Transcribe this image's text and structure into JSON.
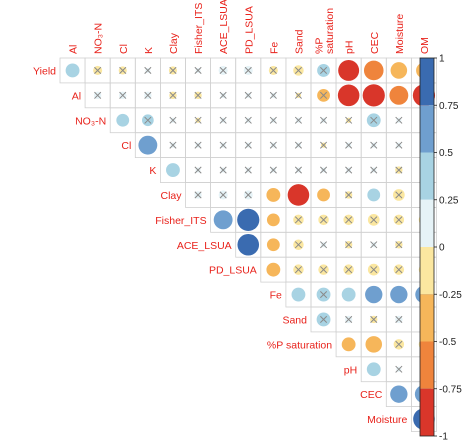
{
  "chart_data": {
    "type": "heatmap",
    "subtype": "correlogram-upper-triangle",
    "variables": [
      "Yield",
      "Al",
      "NO₃-N",
      "Cl",
      "K",
      "Clay",
      "Fisher_ITS",
      "ACE_LSUA",
      "PD_LSUA",
      "Fe",
      "Sand",
      "%P saturation",
      "pH",
      "CEC",
      "Moisture",
      "OM"
    ],
    "row_labels": [
      "Yield",
      "Al",
      "NO₃-N",
      "Cl",
      "K",
      "Clay",
      "Fisher_ITS",
      "ACE_LSUA",
      "PD_LSUA",
      "Fe",
      "Sand",
      "%P saturation",
      "pH",
      "CEC",
      "Moisture"
    ],
    "column_labels": [
      "Al",
      "NO₃-N",
      "Cl",
      "K",
      "Clay",
      "Fisher_ITS",
      "ACE_LSUA",
      "PD_LSUA",
      "Fe",
      "Sand",
      "%P\nsaturation",
      "pH",
      "CEC",
      "Moisture",
      "OM"
    ],
    "cells": [
      {
        "row": "Yield",
        "col": "Al",
        "r": 0.35,
        "sig": true
      },
      {
        "row": "Yield",
        "col": "NO₃-N",
        "r": -0.15,
        "sig": false
      },
      {
        "row": "Yield",
        "col": "Cl",
        "r": -0.12,
        "sig": false
      },
      {
        "row": "Yield",
        "col": "K",
        "r": 0.05,
        "sig": false
      },
      {
        "row": "Yield",
        "col": "Clay",
        "r": -0.12,
        "sig": false
      },
      {
        "row": "Yield",
        "col": "Fisher_ITS",
        "r": 0.05,
        "sig": false
      },
      {
        "row": "Yield",
        "col": "ACE_LSUA",
        "r": 0.15,
        "sig": false
      },
      {
        "row": "Yield",
        "col": "PD_LSUA",
        "r": 0.15,
        "sig": false
      },
      {
        "row": "Yield",
        "col": "Fe",
        "r": -0.15,
        "sig": false
      },
      {
        "row": "Yield",
        "col": "Sand",
        "r": -0.2,
        "sig": false
      },
      {
        "row": "Yield",
        "col": "%P saturation",
        "r": 0.3,
        "sig": false
      },
      {
        "row": "Yield",
        "col": "pH",
        "r": -0.8,
        "sig": true
      },
      {
        "row": "Yield",
        "col": "CEC",
        "r": -0.7,
        "sig": true
      },
      {
        "row": "Yield",
        "col": "Moisture",
        "r": -0.5,
        "sig": true
      },
      {
        "row": "Yield",
        "col": "OM",
        "r": -0.45,
        "sig": false
      },
      {
        "row": "Al",
        "col": "NO₃-N",
        "r": 0.1,
        "sig": false
      },
      {
        "row": "Al",
        "col": "Cl",
        "r": 0.1,
        "sig": false
      },
      {
        "row": "Al",
        "col": "K",
        "r": 0.1,
        "sig": false
      },
      {
        "row": "Al",
        "col": "Clay",
        "r": -0.1,
        "sig": false
      },
      {
        "row": "Al",
        "col": "Fisher_ITS",
        "r": -0.1,
        "sig": false
      },
      {
        "row": "Al",
        "col": "ACE_LSUA",
        "r": 0.05,
        "sig": false
      },
      {
        "row": "Al",
        "col": "PD_LSUA",
        "r": 0.05,
        "sig": false
      },
      {
        "row": "Al",
        "col": "Fe",
        "r": 0.05,
        "sig": false
      },
      {
        "row": "Al",
        "col": "Sand",
        "r": -0.05,
        "sig": false
      },
      {
        "row": "Al",
        "col": "%P saturation",
        "r": -0.3,
        "sig": false
      },
      {
        "row": "Al",
        "col": "pH",
        "r": -0.85,
        "sig": true
      },
      {
        "row": "Al",
        "col": "CEC",
        "r": -0.9,
        "sig": true
      },
      {
        "row": "Al",
        "col": "Moisture",
        "r": -0.65,
        "sig": true
      },
      {
        "row": "Al",
        "col": "OM",
        "r": -0.9,
        "sig": true
      },
      {
        "row": "NO₃-N",
        "col": "Cl",
        "r": 0.3,
        "sig": true
      },
      {
        "row": "NO₃-N",
        "col": "K",
        "r": 0.25,
        "sig": false
      },
      {
        "row": "NO₃-N",
        "col": "Clay",
        "r": 0.05,
        "sig": false
      },
      {
        "row": "NO₃-N",
        "col": "Fisher_ITS",
        "r": -0.05,
        "sig": false
      },
      {
        "row": "NO₃-N",
        "col": "ACE_LSUA",
        "r": 0.05,
        "sig": false
      },
      {
        "row": "NO₃-N",
        "col": "PD_LSUA",
        "r": 0.05,
        "sig": false
      },
      {
        "row": "NO₃-N",
        "col": "Fe",
        "r": 0.05,
        "sig": false
      },
      {
        "row": "NO₃-N",
        "col": "Sand",
        "r": 0.05,
        "sig": false
      },
      {
        "row": "NO₃-N",
        "col": "%P saturation",
        "r": 0.05,
        "sig": false
      },
      {
        "row": "NO₃-N",
        "col": "pH",
        "r": -0.05,
        "sig": false
      },
      {
        "row": "NO₃-N",
        "col": "CEC",
        "r": 0.35,
        "sig": false
      },
      {
        "row": "NO₃-N",
        "col": "Moisture",
        "r": 0.05,
        "sig": false
      },
      {
        "row": "NO₃-N",
        "col": "OM",
        "r": 0.05,
        "sig": false
      },
      {
        "row": "Cl",
        "col": "K",
        "r": 0.65,
        "sig": true
      },
      {
        "row": "Cl",
        "col": "Clay",
        "r": 0.05,
        "sig": false
      },
      {
        "row": "Cl",
        "col": "Fisher_ITS",
        "r": 0.05,
        "sig": false
      },
      {
        "row": "Cl",
        "col": "ACE_LSUA",
        "r": 0.05,
        "sig": false
      },
      {
        "row": "Cl",
        "col": "PD_LSUA",
        "r": 0.05,
        "sig": false
      },
      {
        "row": "Cl",
        "col": "Fe",
        "r": 0.05,
        "sig": false
      },
      {
        "row": "Cl",
        "col": "Sand",
        "r": 0.05,
        "sig": false
      },
      {
        "row": "Cl",
        "col": "%P saturation",
        "r": -0.05,
        "sig": false
      },
      {
        "row": "Cl",
        "col": "pH",
        "r": 0.05,
        "sig": false
      },
      {
        "row": "Cl",
        "col": "CEC",
        "r": 0.05,
        "sig": false
      },
      {
        "row": "Cl",
        "col": "Moisture",
        "r": 0.05,
        "sig": false
      },
      {
        "row": "Cl",
        "col": "OM",
        "r": 0.05,
        "sig": false
      },
      {
        "row": "K",
        "col": "Clay",
        "r": 0.35,
        "sig": true
      },
      {
        "row": "K",
        "col": "Fisher_ITS",
        "r": 0.05,
        "sig": false
      },
      {
        "row": "K",
        "col": "ACE_LSUA",
        "r": 0.05,
        "sig": false
      },
      {
        "row": "K",
        "col": "PD_LSUA",
        "r": 0.05,
        "sig": false
      },
      {
        "row": "K",
        "col": "Fe",
        "r": 0.05,
        "sig": false
      },
      {
        "row": "K",
        "col": "Sand",
        "r": 0.05,
        "sig": false
      },
      {
        "row": "K",
        "col": "%P saturation",
        "r": 0.05,
        "sig": false
      },
      {
        "row": "K",
        "col": "pH",
        "r": 0.05,
        "sig": false
      },
      {
        "row": "K",
        "col": "CEC",
        "r": 0.05,
        "sig": false
      },
      {
        "row": "K",
        "col": "Moisture",
        "r": -0.1,
        "sig": false
      },
      {
        "row": "K",
        "col": "OM",
        "r": 0.05,
        "sig": false
      },
      {
        "row": "Clay",
        "col": "Fisher_ITS",
        "r": 0.1,
        "sig": false
      },
      {
        "row": "Clay",
        "col": "ACE_LSUA",
        "r": 0.15,
        "sig": false
      },
      {
        "row": "Clay",
        "col": "PD_LSUA",
        "r": 0.15,
        "sig": false
      },
      {
        "row": "Clay",
        "col": "Fe",
        "r": -0.35,
        "sig": true
      },
      {
        "row": "Clay",
        "col": "Sand",
        "r": -0.85,
        "sig": true
      },
      {
        "row": "Clay",
        "col": "%P saturation",
        "r": -0.3,
        "sig": true
      },
      {
        "row": "Clay",
        "col": "pH",
        "r": -0.1,
        "sig": false
      },
      {
        "row": "Clay",
        "col": "CEC",
        "r": 0.3,
        "sig": true
      },
      {
        "row": "Clay",
        "col": "Moisture",
        "r": -0.25,
        "sig": false
      },
      {
        "row": "Clay",
        "col": "OM",
        "r": -0.05,
        "sig": false
      },
      {
        "row": "Fisher_ITS",
        "col": "ACE_LSUA",
        "r": 0.65,
        "sig": true
      },
      {
        "row": "Fisher_ITS",
        "col": "PD_LSUA",
        "r": 0.9,
        "sig": true
      },
      {
        "row": "Fisher_ITS",
        "col": "Fe",
        "r": -0.3,
        "sig": true
      },
      {
        "row": "Fisher_ITS",
        "col": "Sand",
        "r": -0.2,
        "sig": false
      },
      {
        "row": "Fisher_ITS",
        "col": "%P saturation",
        "r": -0.2,
        "sig": false
      },
      {
        "row": "Fisher_ITS",
        "col": "pH",
        "r": -0.2,
        "sig": false
      },
      {
        "row": "Fisher_ITS",
        "col": "CEC",
        "r": -0.25,
        "sig": false
      },
      {
        "row": "Fisher_ITS",
        "col": "Moisture",
        "r": -0.2,
        "sig": false
      },
      {
        "row": "Fisher_ITS",
        "col": "OM",
        "r": -0.2,
        "sig": false
      },
      {
        "row": "ACE_LSUA",
        "col": "PD_LSUA",
        "r": 0.85,
        "sig": true
      },
      {
        "row": "ACE_LSUA",
        "col": "Fe",
        "r": -0.3,
        "sig": true
      },
      {
        "row": "ACE_LSUA",
        "col": "Sand",
        "r": -0.2,
        "sig": false
      },
      {
        "row": "ACE_LSUA",
        "col": "%P saturation",
        "r": 0.05,
        "sig": false
      },
      {
        "row": "ACE_LSUA",
        "col": "pH",
        "r": -0.1,
        "sig": false
      },
      {
        "row": "ACE_LSUA",
        "col": "CEC",
        "r": 0.05,
        "sig": false
      },
      {
        "row": "ACE_LSUA",
        "col": "Moisture",
        "r": -0.1,
        "sig": false
      },
      {
        "row": "ACE_LSUA",
        "col": "OM",
        "r": 0.05,
        "sig": false
      },
      {
        "row": "PD_LSUA",
        "col": "Fe",
        "r": -0.35,
        "sig": true
      },
      {
        "row": "PD_LSUA",
        "col": "Sand",
        "r": -0.2,
        "sig": false
      },
      {
        "row": "PD_LSUA",
        "col": "%P saturation",
        "r": -0.2,
        "sig": false
      },
      {
        "row": "PD_LSUA",
        "col": "pH",
        "r": -0.2,
        "sig": false
      },
      {
        "row": "PD_LSUA",
        "col": "CEC",
        "r": -0.25,
        "sig": false
      },
      {
        "row": "PD_LSUA",
        "col": "Moisture",
        "r": -0.2,
        "sig": false
      },
      {
        "row": "PD_LSUA",
        "col": "OM",
        "r": -0.2,
        "sig": false
      },
      {
        "row": "Fe",
        "col": "Sand",
        "r": 0.35,
        "sig": true
      },
      {
        "row": "Fe",
        "col": "%P saturation",
        "r": 0.35,
        "sig": false
      },
      {
        "row": "Fe",
        "col": "pH",
        "r": 0.35,
        "sig": true
      },
      {
        "row": "Fe",
        "col": "CEC",
        "r": 0.55,
        "sig": true
      },
      {
        "row": "Fe",
        "col": "Moisture",
        "r": 0.55,
        "sig": true
      },
      {
        "row": "Fe",
        "col": "OM",
        "r": 0.55,
        "sig": true
      },
      {
        "row": "Sand",
        "col": "%P saturation",
        "r": 0.35,
        "sig": false
      },
      {
        "row": "Sand",
        "col": "pH",
        "r": 0.1,
        "sig": false
      },
      {
        "row": "Sand",
        "col": "CEC",
        "r": -0.1,
        "sig": false
      },
      {
        "row": "Sand",
        "col": "Moisture",
        "r": 0.1,
        "sig": false
      },
      {
        "row": "Sand",
        "col": "OM",
        "r": 0.1,
        "sig": false
      },
      {
        "row": "%P saturation",
        "col": "pH",
        "r": -0.35,
        "sig": true
      },
      {
        "row": "%P saturation",
        "col": "CEC",
        "r": -0.5,
        "sig": true
      },
      {
        "row": "%P saturation",
        "col": "Moisture",
        "r": -0.2,
        "sig": false
      },
      {
        "row": "%P saturation",
        "col": "OM",
        "r": -0.2,
        "sig": false
      },
      {
        "row": "pH",
        "col": "CEC",
        "r": 0.35,
        "sig": true
      },
      {
        "row": "pH",
        "col": "Moisture",
        "r": 0.05,
        "sig": false
      },
      {
        "row": "pH",
        "col": "OM",
        "r": 0.05,
        "sig": false
      },
      {
        "row": "CEC",
        "col": "Moisture",
        "r": 0.55,
        "sig": true
      },
      {
        "row": "CEC",
        "col": "OM",
        "r": 0.6,
        "sig": true
      },
      {
        "row": "Moisture",
        "col": "OM",
        "r": 0.85,
        "sig": true
      }
    ],
    "color_scale": {
      "min": -1,
      "max": 1,
      "ticks": [
        "1",
        "0.75",
        "0.5",
        "0.25",
        "0",
        "-0.25",
        "-0.5",
        "-0.75",
        "-1"
      ],
      "bins": [
        {
          "from": 0.75,
          "to": 1.0,
          "color": "#3a6bb0"
        },
        {
          "from": 0.5,
          "to": 0.75,
          "color": "#6f9fcf"
        },
        {
          "from": 0.25,
          "to": 0.5,
          "color": "#a8d3e3"
        },
        {
          "from": 0.0,
          "to": 0.25,
          "color": "#e6f3f7"
        },
        {
          "from": -0.25,
          "to": 0.0,
          "color": "#fbe7a0"
        },
        {
          "from": -0.5,
          "to": -0.25,
          "color": "#f6b65a"
        },
        {
          "from": -0.75,
          "to": -0.5,
          "color": "#ef843c"
        },
        {
          "from": -1.0,
          "to": -0.75,
          "color": "#d9362a"
        }
      ]
    },
    "label_color": "#e8221b",
    "insignificant_marker": "cross"
  }
}
